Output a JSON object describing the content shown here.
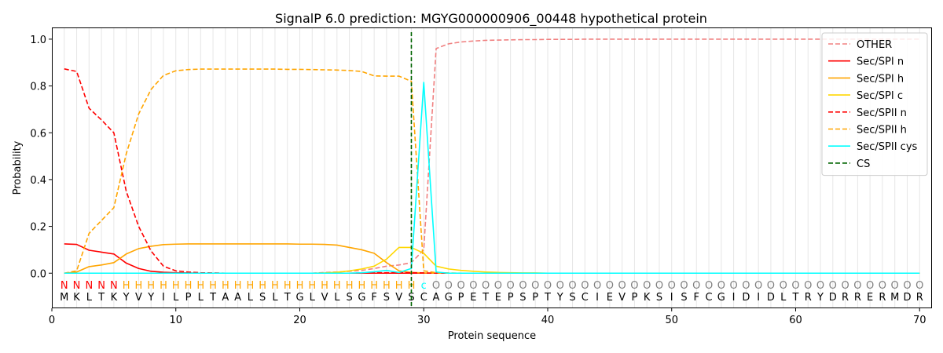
{
  "chart_data": {
    "type": "line",
    "title": "SignalP 6.0 prediction: MGYG000000906_00448 hypothetical protein",
    "xlabel": "Protein sequence",
    "ylabel": "Probability",
    "xlim": [
      0,
      71
    ],
    "ylim": [
      -0.15,
      1.05
    ],
    "xticks": [
      0,
      10,
      20,
      30,
      40,
      50,
      60,
      70
    ],
    "yticks": [
      0.0,
      0.2,
      0.4,
      0.6,
      0.8,
      1.0
    ],
    "ytick_labels": [
      "0.0",
      "0.2",
      "0.4",
      "0.6",
      "0.8",
      "1.0"
    ],
    "grid": "vertical lines at each residue",
    "legend_position": "top-right",
    "sequence": [
      "M",
      "K",
      "L",
      "T",
      "K",
      "Y",
      "V",
      "Y",
      "I",
      "L",
      "P",
      "L",
      "T",
      "A",
      "A",
      "L",
      "S",
      "L",
      "T",
      "G",
      "L",
      "V",
      "L",
      "S",
      "G",
      "F",
      "S",
      "V",
      "S",
      "C",
      "A",
      "G",
      "P",
      "E",
      "T",
      "E",
      "P",
      "S",
      "P",
      "T",
      "Y",
      "S",
      "C",
      "I",
      "E",
      "V",
      "P",
      "K",
      "S",
      "I",
      "S",
      "F",
      "C",
      "G",
      "I",
      "D",
      "I",
      "D",
      "L",
      "T",
      "R",
      "Y",
      "D",
      "R",
      "R",
      "E",
      "R",
      "M",
      "D",
      "R"
    ],
    "annotation": [
      "N",
      "N",
      "N",
      "N",
      "N",
      "H",
      "H",
      "H",
      "H",
      "H",
      "H",
      "H",
      "H",
      "H",
      "H",
      "H",
      "H",
      "H",
      "H",
      "H",
      "H",
      "H",
      "H",
      "H",
      "H",
      "H",
      "H",
      "H",
      "H",
      "c",
      "O",
      "O",
      "O",
      "O",
      "O",
      "O",
      "O",
      "O",
      "O",
      "O",
      "O",
      "O",
      "O",
      "O",
      "O",
      "O",
      "O",
      "O",
      "O",
      "O",
      "O",
      "O",
      "O",
      "O",
      "O",
      "O",
      "O",
      "O",
      "O",
      "O",
      "O",
      "O",
      "O",
      "O",
      "O",
      "O",
      "O",
      "O",
      "O",
      "O"
    ],
    "annotation_colors": {
      "N": "#ff0000",
      "H": "#ffa500",
      "c": "#00ffff",
      "O": "#808080"
    },
    "cleavage_site": 29,
    "series": [
      {
        "name": "OTHER",
        "color": "#f08080",
        "dash": true,
        "values": [
          0.0,
          0.0,
          0.0,
          0.0,
          0.0,
          0.0,
          0.0,
          0.0,
          0.0,
          0.0,
          0.0,
          0.0,
          0.0,
          0.0,
          0.0,
          0.0,
          0.0,
          0.0,
          0.0,
          0.0,
          0.0,
          0.003,
          0.005,
          0.008,
          0.012,
          0.02,
          0.03,
          0.035,
          0.045,
          0.1,
          0.96,
          0.98,
          0.988,
          0.992,
          0.995,
          0.996,
          0.997,
          0.998,
          0.998,
          0.999,
          0.999,
          0.999,
          1.0,
          1.0,
          1.0,
          1.0,
          1.0,
          1.0,
          1.0,
          1.0,
          1.0,
          1.0,
          1.0,
          1.0,
          1.0,
          1.0,
          1.0,
          1.0,
          1.0,
          1.0,
          1.0,
          1.0,
          1.0,
          1.0,
          1.0,
          1.0,
          1.0,
          1.0,
          1.0,
          1.0
        ]
      },
      {
        "name": "Sec/SPI n",
        "color": "#ff0000",
        "dash": false,
        "values": [
          0.125,
          0.123,
          0.098,
          0.09,
          0.082,
          0.043,
          0.02,
          0.008,
          0.004,
          0.002,
          0.001,
          0.0,
          0.0,
          0.0,
          0.0,
          0.0,
          0.0,
          0.0,
          0.0,
          0.0,
          0.0,
          0.0,
          0.0,
          0.0,
          0.0,
          0.0,
          0.0,
          0.0,
          0.0,
          0.0,
          0.0,
          0.0,
          0.0,
          0.0,
          0.0,
          0.0,
          0.0,
          0.0,
          0.0,
          0.0,
          0.0,
          0.0,
          0.0,
          0.0,
          0.0,
          0.0,
          0.0,
          0.0,
          0.0,
          0.0,
          0.0,
          0.0,
          0.0,
          0.0,
          0.0,
          0.0,
          0.0,
          0.0,
          0.0,
          0.0,
          0.0,
          0.0,
          0.0,
          0.0,
          0.0,
          0.0,
          0.0,
          0.0,
          0.0,
          0.0
        ]
      },
      {
        "name": "Sec/SPI h",
        "color": "#ffa500",
        "dash": false,
        "values": [
          0.0,
          0.005,
          0.028,
          0.035,
          0.045,
          0.082,
          0.105,
          0.115,
          0.122,
          0.124,
          0.125,
          0.125,
          0.125,
          0.125,
          0.125,
          0.125,
          0.125,
          0.125,
          0.125,
          0.124,
          0.124,
          0.123,
          0.12,
          0.11,
          0.1,
          0.085,
          0.045,
          0.01,
          0.003,
          0.001,
          0.0,
          0.0,
          0.0,
          0.0,
          0.0,
          0.0,
          0.0,
          0.0,
          0.0,
          0.0,
          0.0,
          0.0,
          0.0,
          0.0,
          0.0,
          0.0,
          0.0,
          0.0,
          0.0,
          0.0,
          0.0,
          0.0,
          0.0,
          0.0,
          0.0,
          0.0,
          0.0,
          0.0,
          0.0,
          0.0,
          0.0,
          0.0,
          0.0,
          0.0,
          0.0,
          0.0,
          0.0,
          0.0,
          0.0,
          0.0
        ]
      },
      {
        "name": "Sec/SPI c",
        "color": "#ffd700",
        "dash": false,
        "values": [
          0.0,
          0.0,
          0.0,
          0.0,
          0.0,
          0.0,
          0.0,
          0.0,
          0.0,
          0.0,
          0.0,
          0.0,
          0.0,
          0.0,
          0.0,
          0.0,
          0.0,
          0.0,
          0.0,
          0.0,
          0.0,
          0.001,
          0.004,
          0.01,
          0.018,
          0.03,
          0.06,
          0.11,
          0.11,
          0.085,
          0.03,
          0.018,
          0.012,
          0.008,
          0.005,
          0.003,
          0.002,
          0.001,
          0.001,
          0.0,
          0.0,
          0.0,
          0.0,
          0.0,
          0.0,
          0.0,
          0.0,
          0.0,
          0.0,
          0.0,
          0.0,
          0.0,
          0.0,
          0.0,
          0.0,
          0.0,
          0.0,
          0.0,
          0.0,
          0.0,
          0.0,
          0.0,
          0.0,
          0.0,
          0.0,
          0.0,
          0.0,
          0.0,
          0.0,
          0.0
        ]
      },
      {
        "name": "Sec/SPII n",
        "color": "#ff0000",
        "dash": true,
        "values": [
          0.873,
          0.862,
          0.705,
          0.655,
          0.6,
          0.35,
          0.2,
          0.095,
          0.03,
          0.01,
          0.005,
          0.002,
          0.001,
          0.0,
          0.0,
          0.0,
          0.0,
          0.0,
          0.0,
          0.0,
          0.0,
          0.0,
          0.0,
          0.0,
          0.001,
          0.002,
          0.002,
          0.002,
          0.002,
          0.001,
          0.0,
          0.0,
          0.0,
          0.0,
          0.0,
          0.0,
          0.0,
          0.0,
          0.0,
          0.0,
          0.0,
          0.0,
          0.0,
          0.0,
          0.0,
          0.0,
          0.0,
          0.0,
          0.0,
          0.0,
          0.0,
          0.0,
          0.0,
          0.0,
          0.0,
          0.0,
          0.0,
          0.0,
          0.0,
          0.0,
          0.0,
          0.0,
          0.0,
          0.0,
          0.0,
          0.0,
          0.0,
          0.0,
          0.0,
          0.0
        ]
      },
      {
        "name": "Sec/SPII h",
        "color": "#ffa500",
        "dash": true,
        "values": [
          0.0,
          0.01,
          0.17,
          0.225,
          0.28,
          0.51,
          0.68,
          0.785,
          0.845,
          0.865,
          0.87,
          0.872,
          0.872,
          0.872,
          0.872,
          0.872,
          0.872,
          0.872,
          0.871,
          0.871,
          0.87,
          0.869,
          0.868,
          0.866,
          0.862,
          0.843,
          0.842,
          0.842,
          0.82,
          0.01,
          0.002,
          0.001,
          0.0,
          0.0,
          0.0,
          0.0,
          0.0,
          0.0,
          0.0,
          0.0,
          0.0,
          0.0,
          0.0,
          0.0,
          0.0,
          0.0,
          0.0,
          0.0,
          0.0,
          0.0,
          0.0,
          0.0,
          0.0,
          0.0,
          0.0,
          0.0,
          0.0,
          0.0,
          0.0,
          0.0,
          0.0,
          0.0,
          0.0,
          0.0,
          0.0,
          0.0,
          0.0,
          0.0,
          0.0,
          0.0
        ]
      },
      {
        "name": "Sec/SPII cys",
        "color": "#00ffff",
        "dash": false,
        "values": [
          0.0,
          0.0,
          0.0,
          0.0,
          0.0,
          0.0,
          0.0,
          0.0,
          0.0,
          0.0,
          0.0,
          0.0,
          0.0,
          0.0,
          0.0,
          0.0,
          0.0,
          0.0,
          0.0,
          0.0,
          0.0,
          0.0,
          0.0,
          0.0,
          0.002,
          0.006,
          0.012,
          0.003,
          0.02,
          0.815,
          0.005,
          0.0,
          0.0,
          0.0,
          0.0,
          0.0,
          0.0,
          0.0,
          0.0,
          0.0,
          0.0,
          0.0,
          0.0,
          0.0,
          0.0,
          0.0,
          0.0,
          0.0,
          0.0,
          0.0,
          0.0,
          0.0,
          0.0,
          0.0,
          0.0,
          0.0,
          0.0,
          0.0,
          0.0,
          0.0,
          0.0,
          0.0,
          0.0,
          0.0,
          0.0,
          0.0,
          0.0,
          0.0,
          0.0,
          0.0
        ]
      },
      {
        "name": "CS",
        "color": "#006400",
        "dash": true,
        "values": []
      }
    ]
  }
}
